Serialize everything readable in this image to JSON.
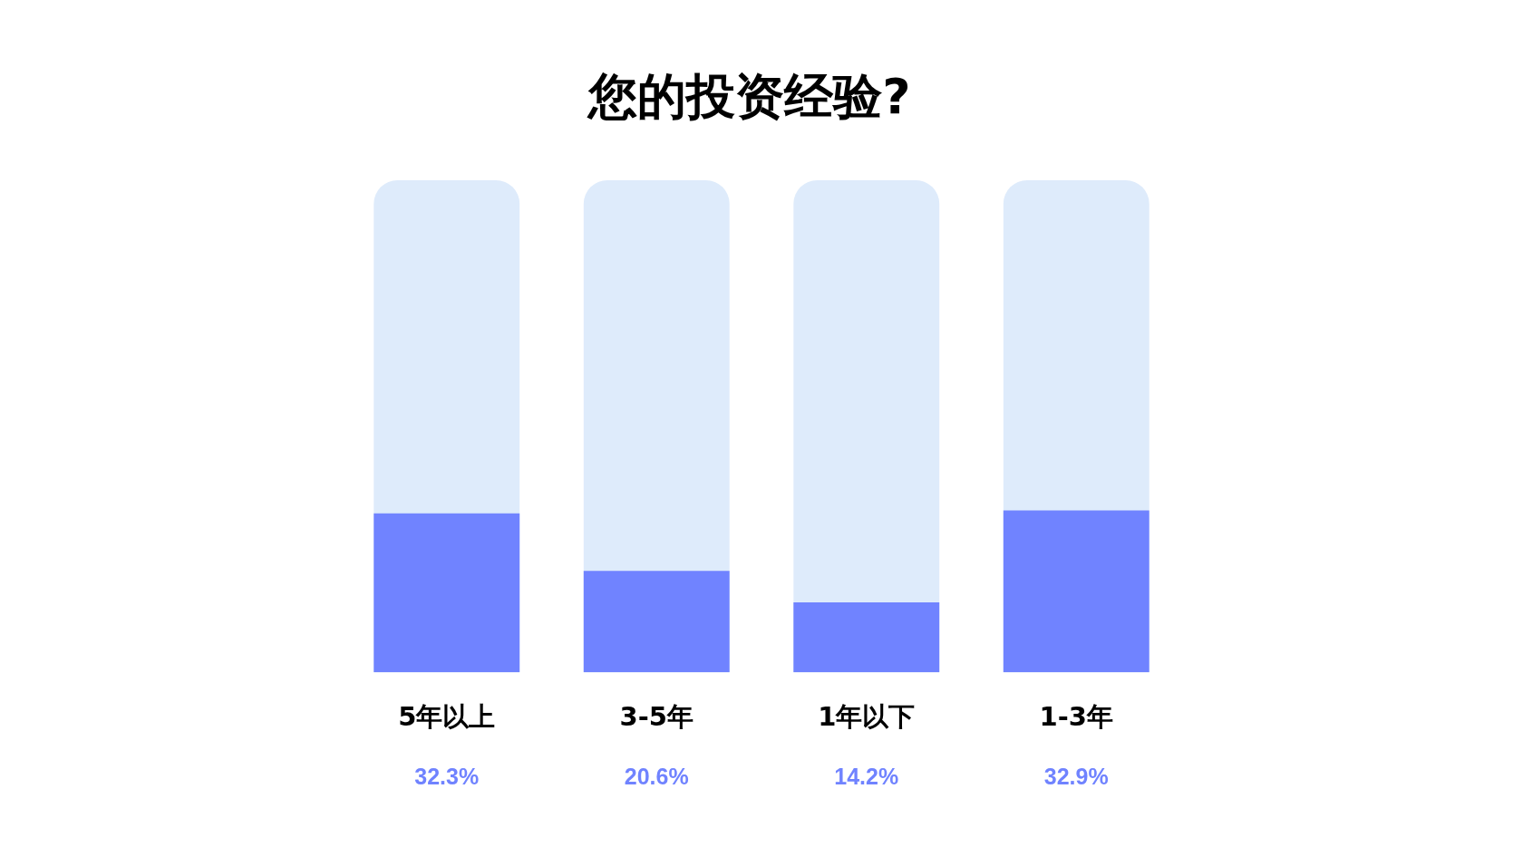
{
  "chart_data": {
    "type": "bar",
    "title": "您的投资经验?",
    "categories": [
      "5年以上",
      "3-5年",
      "1年以下",
      "1-3年"
    ],
    "values": [
      32.3,
      20.6,
      14.2,
      32.9
    ],
    "color": "#7083ff",
    "value_labels": [
      "32.3%",
      "20.6%",
      "14.2%",
      "32.9%"
    ],
    "ylim": [
      0,
      100
    ],
    "tick_labels": "x"
  }
}
